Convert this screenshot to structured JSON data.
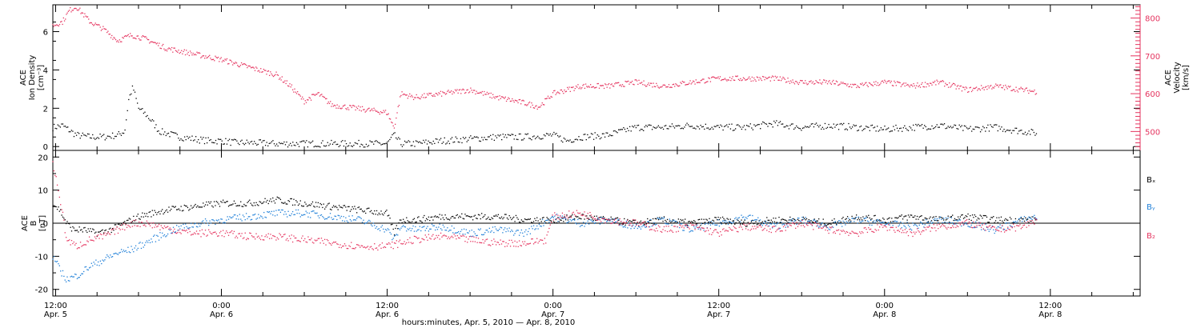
{
  "colors": {
    "axis": "#000000",
    "density": "#000000",
    "velocity": "#e5345f",
    "bx": "#000000",
    "by": "#1e7fd8",
    "bz": "#e5345f"
  },
  "top_panel": {
    "left_axis_label_lines": [
      "ACE",
      "Ion Density"
    ],
    "left_axis_unit": "[cm⁻³]",
    "right_axis_label_lines": [
      "ACE",
      "Velocity"
    ],
    "right_axis_unit": "[km/s]"
  },
  "bottom_panel": {
    "axis_label_lines": [
      "ACE",
      "B"
    ],
    "axis_unit": "[nT]",
    "legend": [
      "Bₓ",
      "Bᵧ",
      "B₂"
    ]
  },
  "x_axis": {
    "title": "hours:minutes, Apr.  5, 2010 — Apr.  8, 2010",
    "ticks": [
      {
        "t": 12,
        "time": "12:00",
        "day": "Apr. 5"
      },
      {
        "t": 24,
        "time": "0:00",
        "day": "Apr. 6"
      },
      {
        "t": 36,
        "time": "12:00",
        "day": "Apr. 6"
      },
      {
        "t": 48,
        "time": "0:00",
        "day": "Apr. 7"
      },
      {
        "t": 60,
        "time": "12:00",
        "day": "Apr. 7"
      },
      {
        "t": 72,
        "time": "0:00",
        "day": "Apr. 8"
      },
      {
        "t": 84,
        "time": "12:00",
        "day": "Apr. 8"
      }
    ]
  },
  "chart_data": [
    {
      "type": "scatter",
      "title": "",
      "xlabel": "hours:minutes, Apr.  5, 2010 — Apr.  8, 2010",
      "x_unit": "hours since Apr. 5 0:00",
      "xlim": [
        11.8,
        90.5
      ],
      "ylabel": "ACE Ion Density [cm⁻³]",
      "ylim": [
        -0.2,
        7.4
      ],
      "y_ticks": [
        0,
        2,
        4,
        6
      ],
      "y2label": "ACE Velocity [km/s]",
      "y2lim": [
        450,
        835
      ],
      "y2_ticks": [
        500,
        600,
        700,
        800
      ],
      "series": [
        {
          "name": "Ion Density",
          "axis": "left",
          "x": [
            11.8,
            12.5,
            13.5,
            14.5,
            15.5,
            16.5,
            17.0,
            17.3,
            17.6,
            18.0,
            18.5,
            19.0,
            19.5,
            20.0,
            21.0,
            22.0,
            23.0,
            24.0,
            25.0,
            26.0,
            28.0,
            30.0,
            32.0,
            34.0,
            35.0,
            36.0,
            36.5,
            37.0,
            38.0,
            40.0,
            42.0,
            44.0,
            46.0,
            48.0,
            49.0,
            50.0,
            52.0,
            54.0,
            56.0,
            58.0,
            60.0,
            62.0,
            64.0,
            66.0,
            68.0,
            70.0,
            72.0,
            74.0,
            76.0,
            78.0,
            80.0,
            82.0,
            83.0
          ],
          "y": [
            1.0,
            1.1,
            0.6,
            0.5,
            0.5,
            0.6,
            0.8,
            2.5,
            3.1,
            2.0,
            1.7,
            1.3,
            0.8,
            0.7,
            0.5,
            0.4,
            0.3,
            0.3,
            0.2,
            0.2,
            0.15,
            0.15,
            0.15,
            0.15,
            0.15,
            0.15,
            0.6,
            0.15,
            0.15,
            0.3,
            0.4,
            0.5,
            0.5,
            0.6,
            0.3,
            0.5,
            0.6,
            1.0,
            1.0,
            1.1,
            1.0,
            1.0,
            1.2,
            1.0,
            1.1,
            1.0,
            0.9,
            1.0,
            1.1,
            0.9,
            1.0,
            0.8,
            0.7
          ]
        },
        {
          "name": "Velocity",
          "axis": "right",
          "x": [
            11.8,
            12.5,
            13.0,
            13.5,
            14.5,
            15.5,
            16.5,
            17.5,
            18.5,
            20.0,
            22.0,
            24.0,
            26.0,
            28.0,
            29.0,
            30.0,
            31.0,
            32.0,
            34.0,
            35.0,
            36.0,
            36.5,
            37.0,
            38.0,
            40.0,
            42.0,
            44.0,
            46.0,
            47.0,
            48.0,
            50.0,
            52.0,
            54.0,
            56.0,
            58.0,
            60.0,
            62.0,
            64.0,
            66.0,
            68.0,
            70.0,
            72.0,
            74.0,
            76.0,
            78.0,
            80.0,
            82.0,
            83.0
          ],
          "y": [
            780,
            790,
            820,
            830,
            790,
            770,
            740,
            755,
            745,
            720,
            705,
            690,
            670,
            650,
            620,
            580,
            600,
            570,
            560,
            555,
            550,
            510,
            600,
            590,
            600,
            610,
            590,
            575,
            565,
            600,
            620,
            620,
            630,
            620,
            630,
            640,
            640,
            640,
            630,
            630,
            620,
            630,
            620,
            630,
            610,
            620,
            610,
            605
          ]
        }
      ]
    },
    {
      "type": "scatter",
      "title": "",
      "xlabel": "hours:minutes, Apr.  5, 2010 — Apr.  8, 2010",
      "x_unit": "hours since Apr. 5 0:00",
      "xlim": [
        11.8,
        90.5
      ],
      "ylabel": "ACE B [nT]",
      "ylim": [
        -22,
        22
      ],
      "y_ticks": [
        -20,
        -10,
        0,
        10,
        20
      ],
      "reference_line": 0,
      "series": [
        {
          "name": "Bₓ",
          "x": [
            11.8,
            12.3,
            12.8,
            13.3,
            14.0,
            15.0,
            16.0,
            17.0,
            18.0,
            19.0,
            20.0,
            22.0,
            24.0,
            26.0,
            28.0,
            30.0,
            32.0,
            34.0,
            36.0,
            36.5,
            37.0,
            38.0,
            40.0,
            42.0,
            44.0,
            46.0,
            48.0,
            50.0,
            52.0,
            54.0,
            56.0,
            58.0,
            60.0,
            62.0,
            64.0,
            66.0,
            68.0,
            70.0,
            72.0,
            74.0,
            76.0,
            78.0,
            80.0,
            82.0,
            83.0
          ],
          "y": [
            6,
            4,
            0,
            -2,
            -2,
            -3,
            -2,
            0,
            2,
            3,
            4,
            5,
            6,
            6,
            7,
            6,
            5,
            4,
            3,
            -3,
            1,
            1,
            2,
            2,
            2,
            1,
            1,
            2,
            1,
            0,
            1,
            0,
            1,
            0,
            1,
            1,
            0,
            2,
            1,
            2,
            1,
            2,
            1,
            1,
            1
          ]
        },
        {
          "name": "Bᵧ",
          "x": [
            11.8,
            12.3,
            12.8,
            13.5,
            14.5,
            15.5,
            16.5,
            17.5,
            18.5,
            19.5,
            20.5,
            21.5,
            22.5,
            24.0,
            26.0,
            28.0,
            30.0,
            32.0,
            34.0,
            36.0,
            36.5,
            37.0,
            38.0,
            40.0,
            42.0,
            44.0,
            46.0,
            48.0,
            50.0,
            52.0,
            54.0,
            56.0,
            58.0,
            60.0,
            62.0,
            64.0,
            66.0,
            68.0,
            70.0,
            72.0,
            74.0,
            76.0,
            78.0,
            80.0,
            82.0,
            83.0
          ],
          "y": [
            -10,
            -14,
            -17,
            -16,
            -13,
            -11,
            -9,
            -8,
            -6,
            -4,
            -2,
            -1,
            0,
            1,
            2,
            3,
            3,
            2,
            1,
            -2,
            -5,
            -1,
            -2,
            -1,
            -3,
            -2,
            -3,
            2,
            0,
            1,
            -1,
            1,
            -2,
            0,
            2,
            -1,
            1,
            -1,
            1,
            0,
            -1,
            1,
            0,
            -2,
            1,
            2
          ]
        },
        {
          "name": "B₂",
          "x": [
            11.8,
            12.3,
            12.8,
            13.5,
            14.5,
            15.5,
            16.5,
            17.5,
            18.5,
            19.5,
            20.5,
            22.0,
            24.0,
            26.0,
            28.0,
            30.0,
            32.0,
            34.0,
            36.0,
            37.0,
            38.0,
            40.0,
            42.0,
            44.0,
            46.0,
            47.5,
            48.0,
            50.0,
            52.0,
            54.0,
            56.0,
            58.0,
            60.0,
            62.0,
            64.0,
            66.0,
            68.0,
            70.0,
            72.0,
            74.0,
            76.0,
            78.0,
            80.0,
            82.0,
            83.0
          ],
          "y": [
            18,
            8,
            -5,
            -7,
            -5,
            -4,
            -2,
            0,
            0,
            -1,
            -2,
            -3,
            -3,
            -4,
            -4,
            -5,
            -6,
            -7,
            -7,
            -6,
            -5,
            -4,
            -5,
            -6,
            -6,
            -5,
            2,
            3,
            1,
            0,
            -2,
            -1,
            -3,
            -1,
            -2,
            0,
            -2,
            -3,
            -1,
            -3,
            -1,
            0,
            -2,
            -1,
            1
          ]
        }
      ]
    }
  ]
}
